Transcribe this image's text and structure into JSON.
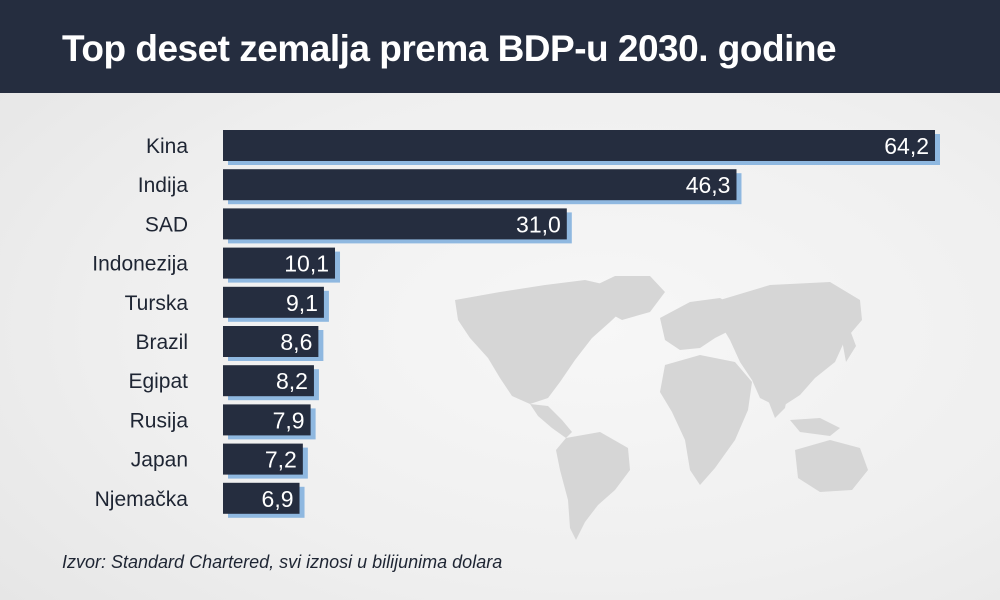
{
  "title": "Top deset zemalja prema BDP-u 2030. godine",
  "source": "Izvor: Standard Chartered, svi iznosi u bilijunima dolara",
  "colors": {
    "header": "#252d3f",
    "bar": "#252d3f",
    "bar_shadow": "#8fb8e0",
    "map": "#d6d6d6",
    "label_text": "#1e2533",
    "value_text": "#ffffff"
  },
  "chart_data": {
    "type": "bar",
    "orientation": "horizontal",
    "categories": [
      "Kina",
      "Indija",
      "SAD",
      "Indonezija",
      "Turska",
      "Brazil",
      "Egipat",
      "Rusija",
      "Japan",
      "Njemačka"
    ],
    "values": [
      64.2,
      46.3,
      31.0,
      10.1,
      9.1,
      8.6,
      8.2,
      7.9,
      7.2,
      6.9
    ],
    "value_labels": [
      "64,2",
      "46,3",
      "31,0",
      "10,1",
      "9,1",
      "8,6",
      "8,2",
      "7,9",
      "7,2",
      "6,9"
    ],
    "xlim": [
      0,
      64.2
    ],
    "grid": false,
    "title": "Top deset zemalja prema BDP-u 2030. godine"
  }
}
